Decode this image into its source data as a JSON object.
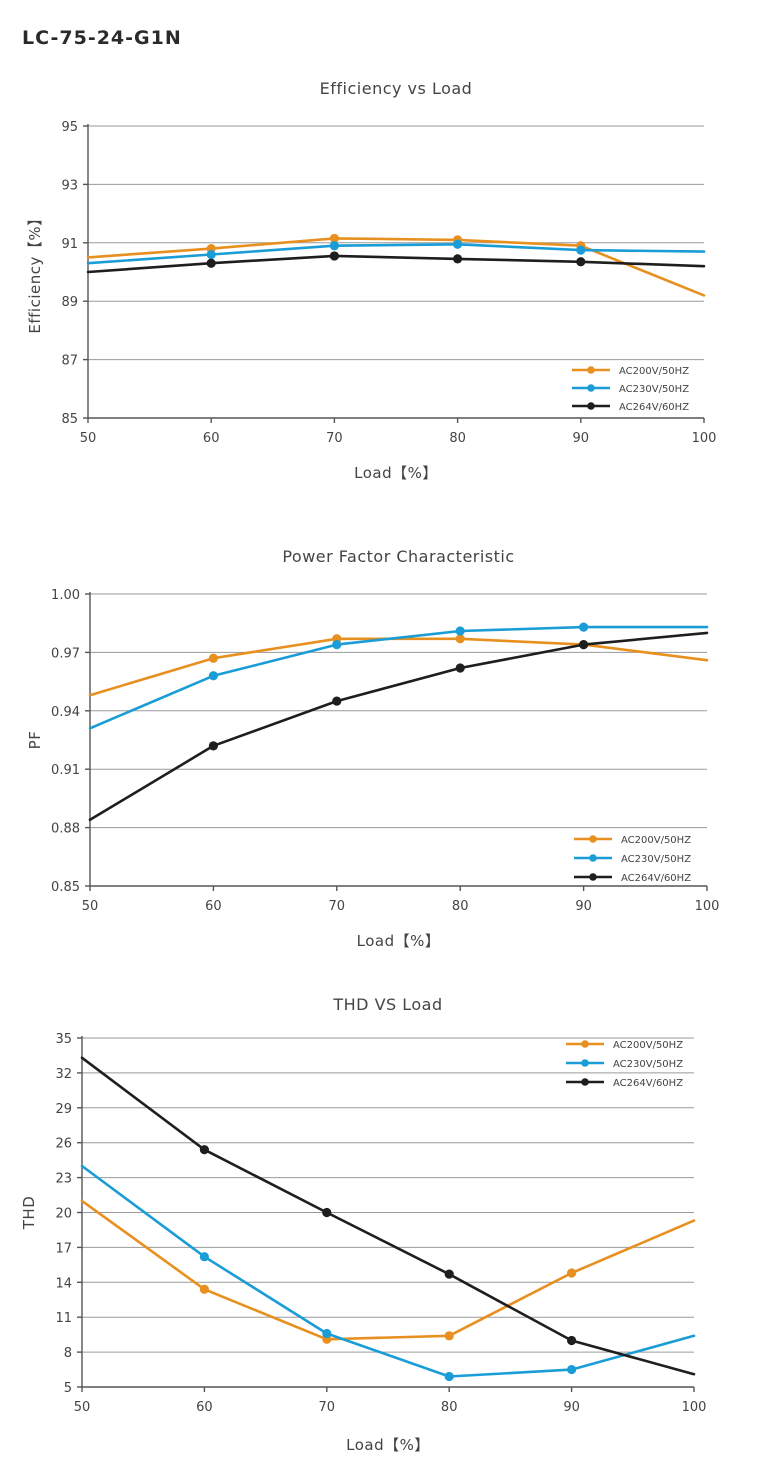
{
  "model": "LC-75-24-G1N",
  "colors": {
    "AC200V/50HZ": "#e8901f",
    "AC230V/50HZ": "#1a9dd6",
    "AC264V/60HZ": "#1e1e1e"
  },
  "chart_data": [
    {
      "type": "line",
      "title": "Efficiency vs Load",
      "xlabel": "Load【%】",
      "ylabel": "Efficiency【%】",
      "xlim": [
        50,
        100
      ],
      "ylim": [
        85,
        95
      ],
      "xticks": [
        50,
        60,
        70,
        80,
        90,
        100
      ],
      "yticks": [
        85,
        87,
        89,
        91,
        93,
        95
      ],
      "ytick_labels": [
        "85",
        "87",
        "89",
        "91",
        "93",
        "95"
      ],
      "grid": "horizontal",
      "legend": "bottom-right",
      "series": [
        {
          "name": "AC200V/50HZ",
          "color": "#e8901f",
          "x": [
            50,
            60,
            70,
            80,
            90,
            100
          ],
          "y": [
            90.5,
            90.8,
            91.15,
            91.1,
            90.9,
            89.2
          ],
          "markers": [
            false,
            true,
            true,
            true,
            true,
            false
          ]
        },
        {
          "name": "AC230V/50HZ",
          "color": "#1a9dd6",
          "x": [
            50,
            60,
            70,
            80,
            90,
            100
          ],
          "y": [
            90.3,
            90.6,
            90.9,
            90.95,
            90.75,
            90.7
          ],
          "markers": [
            false,
            true,
            true,
            true,
            true,
            false
          ]
        },
        {
          "name": "AC264V/60HZ",
          "color": "#1e1e1e",
          "x": [
            50,
            60,
            70,
            80,
            90,
            100
          ],
          "y": [
            90.0,
            90.3,
            90.55,
            90.45,
            90.35,
            90.2
          ],
          "markers": [
            false,
            true,
            true,
            true,
            true,
            false
          ]
        }
      ]
    },
    {
      "type": "line",
      "title": "Power Factor Characteristic",
      "xlabel": "Load【%】",
      "ylabel": "PF",
      "xlim": [
        50,
        100
      ],
      "ylim": [
        0.85,
        1.0
      ],
      "xticks": [
        50,
        60,
        70,
        80,
        90,
        100
      ],
      "yticks": [
        0.85,
        0.88,
        0.91,
        0.94,
        0.97,
        1.0
      ],
      "ytick_labels": [
        "0.85",
        "0.88",
        "0.91",
        "0.94",
        "0.97",
        "1.00"
      ],
      "grid": "horizontal",
      "legend": "bottom-right",
      "series": [
        {
          "name": "AC200V/50HZ",
          "color": "#e8901f",
          "x": [
            50,
            60,
            70,
            80,
            90,
            100
          ],
          "y": [
            0.948,
            0.967,
            0.977,
            0.977,
            0.974,
            0.966
          ],
          "markers": [
            false,
            true,
            true,
            true,
            true,
            false
          ]
        },
        {
          "name": "AC230V/50HZ",
          "color": "#1a9dd6",
          "x": [
            50,
            60,
            70,
            80,
            90,
            100
          ],
          "y": [
            0.931,
            0.958,
            0.974,
            0.981,
            0.983,
            0.983
          ],
          "markers": [
            false,
            true,
            true,
            true,
            true,
            false
          ]
        },
        {
          "name": "AC264V/60HZ",
          "color": "#1e1e1e",
          "x": [
            50,
            60,
            70,
            80,
            90,
            100
          ],
          "y": [
            0.884,
            0.922,
            0.945,
            0.962,
            0.974,
            0.98
          ],
          "markers": [
            false,
            true,
            true,
            true,
            true,
            false
          ]
        }
      ]
    },
    {
      "type": "line",
      "title": "THD VS Load",
      "xlabel": "Load【%】",
      "ylabel": "THD",
      "xlim": [
        50,
        100
      ],
      "ylim": [
        5,
        35
      ],
      "xticks": [
        50,
        60,
        70,
        80,
        90,
        100
      ],
      "yticks": [
        5,
        8,
        11,
        14,
        17,
        20,
        23,
        26,
        29,
        32,
        35
      ],
      "ytick_labels": [
        "5",
        "8",
        "11",
        "14",
        "17",
        "20",
        "23",
        "26",
        "29",
        "32",
        "35"
      ],
      "grid": "horizontal",
      "legend": "top-right",
      "series": [
        {
          "name": "AC200V/50HZ",
          "color": "#e8901f",
          "x": [
            50,
            60,
            70,
            80,
            90,
            100
          ],
          "y": [
            21.0,
            13.4,
            9.1,
            9.4,
            14.8,
            19.3
          ],
          "markers": [
            false,
            true,
            true,
            true,
            true,
            false
          ]
        },
        {
          "name": "AC230V/50HZ",
          "color": "#1a9dd6",
          "x": [
            50,
            60,
            70,
            80,
            90,
            100
          ],
          "y": [
            24.0,
            16.2,
            9.6,
            5.9,
            6.5,
            9.4
          ],
          "markers": [
            false,
            true,
            true,
            true,
            true,
            false
          ]
        },
        {
          "name": "AC264V/60HZ",
          "color": "#1e1e1e",
          "x": [
            50,
            60,
            70,
            80,
            90,
            100
          ],
          "y": [
            33.3,
            25.4,
            20.0,
            14.7,
            9.0,
            6.1
          ],
          "markers": [
            false,
            true,
            true,
            true,
            true,
            false
          ]
        }
      ]
    }
  ]
}
